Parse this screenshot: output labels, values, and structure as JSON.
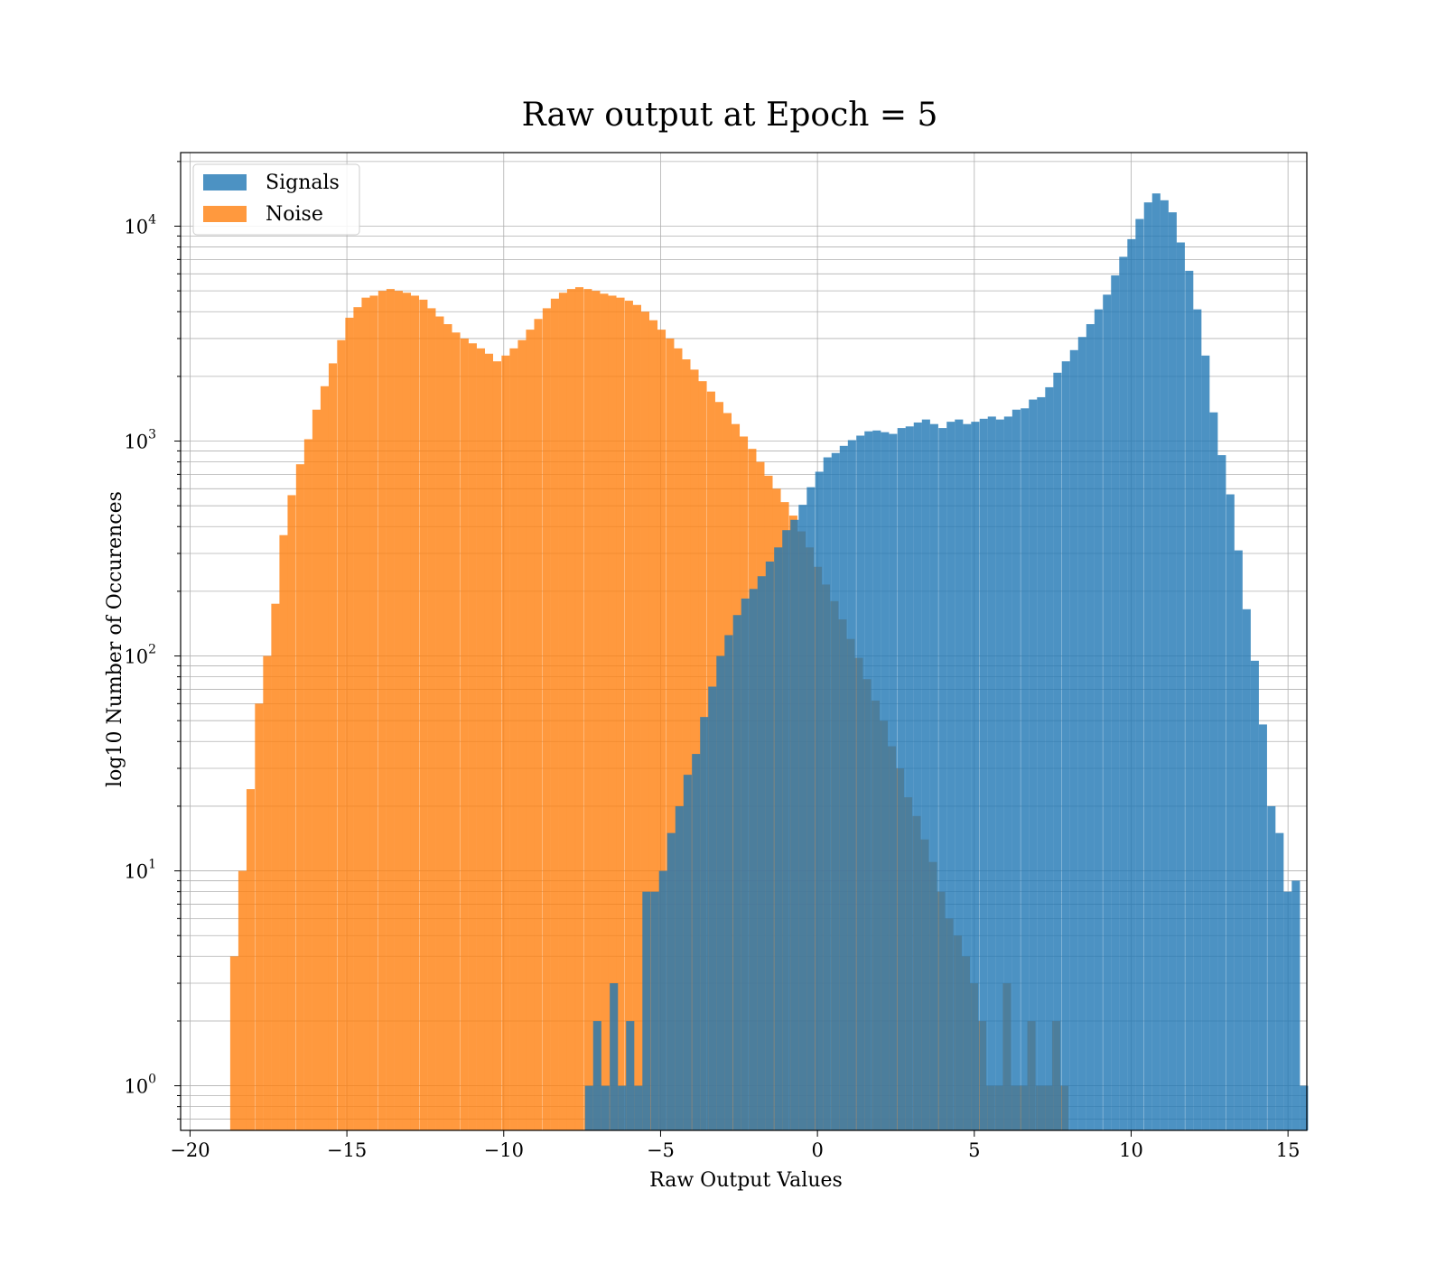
{
  "chart_data": {
    "type": "bar",
    "title": "Raw output at Epoch = 5",
    "xlabel": "Raw Output Values",
    "ylabel": "log10 Number of Occurences",
    "xlim": [
      -20.3,
      15.6
    ],
    "ylim": [
      0.62,
      22000
    ],
    "y_scale": "log",
    "grid": true,
    "legend_position": "top-left",
    "x_ticks": [
      -20,
      -15,
      -10,
      -5,
      0,
      5,
      10,
      15
    ],
    "x_tick_labels": [
      "−20",
      "−15",
      "−10",
      "−5",
      "0",
      "5",
      "10",
      "15"
    ],
    "y_ticks": [
      1,
      10,
      100,
      1000,
      10000
    ],
    "y_tick_labels": [
      {
        "base": "10",
        "exp": "0"
      },
      {
        "base": "10",
        "exp": "1"
      },
      {
        "base": "10",
        "exp": "2"
      },
      {
        "base": "10",
        "exp": "3"
      },
      {
        "base": "10",
        "exp": "4"
      }
    ],
    "series": [
      {
        "name": "Noise",
        "color": "#ff7f0e",
        "opacity": 0.8,
        "bin_width": 0.2615,
        "bins": [
          [
            -18.72,
            4
          ],
          [
            -18.46,
            10
          ],
          [
            -18.2,
            24
          ],
          [
            -17.93,
            60
          ],
          [
            -17.67,
            100
          ],
          [
            -17.41,
            175
          ],
          [
            -17.15,
            365
          ],
          [
            -16.89,
            560
          ],
          [
            -16.62,
            780
          ],
          [
            -16.36,
            1020
          ],
          [
            -16.1,
            1400
          ],
          [
            -15.84,
            1800
          ],
          [
            -15.58,
            2300
          ],
          [
            -15.31,
            2950
          ],
          [
            -15.05,
            3750
          ],
          [
            -14.79,
            4200
          ],
          [
            -14.53,
            4650
          ],
          [
            -14.27,
            4750
          ],
          [
            -14.0,
            5000
          ],
          [
            -13.74,
            5100
          ],
          [
            -13.48,
            5000
          ],
          [
            -13.22,
            4900
          ],
          [
            -12.96,
            4750
          ],
          [
            -12.69,
            4550
          ],
          [
            -12.43,
            4150
          ],
          [
            -12.17,
            3800
          ],
          [
            -11.91,
            3500
          ],
          [
            -11.65,
            3200
          ],
          [
            -11.38,
            3000
          ],
          [
            -11.12,
            2850
          ],
          [
            -10.86,
            2700
          ],
          [
            -10.6,
            2550
          ],
          [
            -10.34,
            2350
          ],
          [
            -10.07,
            2500
          ],
          [
            -9.81,
            2700
          ],
          [
            -9.55,
            2950
          ],
          [
            -9.29,
            3300
          ],
          [
            -9.03,
            3700
          ],
          [
            -8.76,
            4150
          ],
          [
            -8.5,
            4600
          ],
          [
            -8.24,
            4900
          ],
          [
            -7.98,
            5100
          ],
          [
            -7.72,
            5200
          ],
          [
            -7.45,
            5100
          ],
          [
            -7.19,
            5000
          ],
          [
            -6.93,
            4850
          ],
          [
            -6.67,
            4750
          ],
          [
            -6.41,
            4650
          ],
          [
            -6.14,
            4500
          ],
          [
            -5.88,
            4300
          ],
          [
            -5.62,
            4000
          ],
          [
            -5.36,
            3650
          ],
          [
            -5.1,
            3300
          ],
          [
            -4.83,
            3000
          ],
          [
            -4.57,
            2700
          ],
          [
            -4.31,
            2400
          ],
          [
            -4.05,
            2150
          ],
          [
            -3.79,
            1900
          ],
          [
            -3.52,
            1700
          ],
          [
            -3.26,
            1520
          ],
          [
            -3.0,
            1350
          ],
          [
            -2.74,
            1200
          ],
          [
            -2.48,
            1050
          ],
          [
            -2.21,
            920
          ],
          [
            -1.95,
            800
          ],
          [
            -1.69,
            690
          ],
          [
            -1.43,
            600
          ],
          [
            -1.17,
            520
          ],
          [
            -0.9,
            450
          ],
          [
            -0.64,
            380
          ],
          [
            -0.38,
            320
          ],
          [
            -0.12,
            260
          ],
          [
            0.14,
            215
          ],
          [
            0.41,
            180
          ],
          [
            0.67,
            148
          ],
          [
            0.93,
            120
          ],
          [
            1.19,
            98
          ],
          [
            1.45,
            78
          ],
          [
            1.72,
            62
          ],
          [
            1.98,
            50
          ],
          [
            2.24,
            38
          ],
          [
            2.5,
            30
          ],
          [
            2.76,
            22
          ],
          [
            3.03,
            18
          ],
          [
            3.29,
            14
          ],
          [
            3.55,
            11
          ],
          [
            3.81,
            8
          ],
          [
            4.07,
            6
          ],
          [
            4.34,
            5
          ],
          [
            4.6,
            4
          ],
          [
            4.86,
            3
          ],
          [
            5.12,
            2
          ],
          [
            5.38,
            1
          ],
          [
            5.65,
            1
          ],
          [
            5.91,
            3
          ],
          [
            6.17,
            1
          ],
          [
            6.43,
            1
          ],
          [
            6.69,
            2
          ],
          [
            6.96,
            1
          ],
          [
            7.22,
            1
          ],
          [
            7.48,
            2
          ],
          [
            7.74,
            1
          ]
        ]
      },
      {
        "name": "Signals",
        "color": "#1f77b4",
        "opacity": 0.8,
        "bin_width": 0.2615,
        "bins": [
          [
            -7.41,
            1
          ],
          [
            -7.15,
            2
          ],
          [
            -6.89,
            1
          ],
          [
            -6.62,
            3
          ],
          [
            -6.36,
            1
          ],
          [
            -6.1,
            2
          ],
          [
            -5.84,
            1
          ],
          [
            -5.58,
            8
          ],
          [
            -5.31,
            8
          ],
          [
            -5.05,
            10
          ],
          [
            -4.79,
            15
          ],
          [
            -4.53,
            20
          ],
          [
            -4.27,
            28
          ],
          [
            -4.0,
            35
          ],
          [
            -3.74,
            52
          ],
          [
            -3.48,
            72
          ],
          [
            -3.22,
            100
          ],
          [
            -2.96,
            125
          ],
          [
            -2.69,
            155
          ],
          [
            -2.43,
            185
          ],
          [
            -2.17,
            205
          ],
          [
            -1.91,
            235
          ],
          [
            -1.65,
            275
          ],
          [
            -1.38,
            320
          ],
          [
            -1.12,
            385
          ],
          [
            -0.86,
            430
          ],
          [
            -0.6,
            505
          ],
          [
            -0.34,
            610
          ],
          [
            -0.07,
            720
          ],
          [
            0.19,
            840
          ],
          [
            0.45,
            880
          ],
          [
            0.71,
            950
          ],
          [
            0.97,
            1010
          ],
          [
            1.24,
            1060
          ],
          [
            1.5,
            1110
          ],
          [
            1.76,
            1120
          ],
          [
            2.02,
            1100
          ],
          [
            2.28,
            1080
          ],
          [
            2.55,
            1150
          ],
          [
            2.81,
            1170
          ],
          [
            3.07,
            1220
          ],
          [
            3.33,
            1260
          ],
          [
            3.59,
            1200
          ],
          [
            3.86,
            1150
          ],
          [
            4.12,
            1230
          ],
          [
            4.38,
            1260
          ],
          [
            4.64,
            1200
          ],
          [
            4.9,
            1230
          ],
          [
            5.17,
            1270
          ],
          [
            5.43,
            1300
          ],
          [
            5.69,
            1260
          ],
          [
            5.95,
            1300
          ],
          [
            6.21,
            1400
          ],
          [
            6.48,
            1420
          ],
          [
            6.74,
            1560
          ],
          [
            7.0,
            1600
          ],
          [
            7.26,
            1780
          ],
          [
            7.52,
            2080
          ],
          [
            7.79,
            2350
          ],
          [
            8.05,
            2650
          ],
          [
            8.31,
            3050
          ],
          [
            8.57,
            3500
          ],
          [
            8.83,
            4100
          ],
          [
            9.1,
            4800
          ],
          [
            9.36,
            5900
          ],
          [
            9.62,
            7200
          ],
          [
            9.88,
            8700
          ],
          [
            10.14,
            10800
          ],
          [
            10.41,
            12900
          ],
          [
            10.67,
            14200
          ],
          [
            10.93,
            13200
          ],
          [
            11.19,
            11600
          ],
          [
            11.45,
            8400
          ],
          [
            11.72,
            6200
          ],
          [
            11.98,
            4100
          ],
          [
            12.24,
            2500
          ],
          [
            12.5,
            1360
          ],
          [
            12.76,
            860
          ],
          [
            13.03,
            565
          ],
          [
            13.29,
            310
          ],
          [
            13.55,
            165
          ],
          [
            13.81,
            95
          ],
          [
            14.07,
            48
          ],
          [
            14.34,
            20
          ],
          [
            14.6,
            15
          ],
          [
            14.86,
            8
          ],
          [
            15.12,
            9
          ],
          [
            15.38,
            1
          ]
        ]
      }
    ],
    "legend": [
      {
        "name": "Signals",
        "color": "#1f77b4"
      },
      {
        "name": "Noise",
        "color": "#ff7f0e"
      }
    ]
  }
}
